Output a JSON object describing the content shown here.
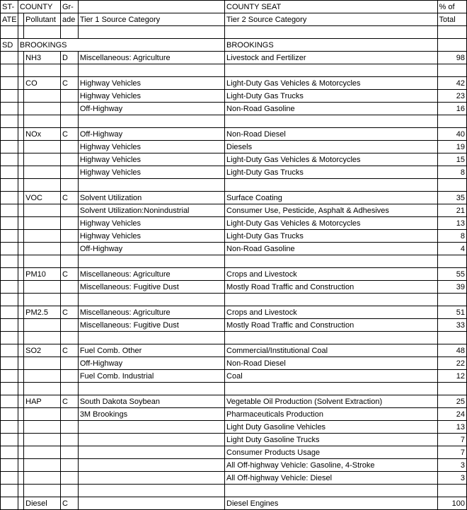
{
  "header": {
    "state": "ST-",
    "county": "COUNTY",
    "grade": "Gr-",
    "countySeat": "COUNTY SEAT",
    "pctOf": "% of",
    "ate": "ATE",
    "pollutant": "Pollutant",
    "ade": "ade",
    "tier1": "Tier 1 Source Category",
    "tier2": "Tier 2 Source Category",
    "total": "Total"
  },
  "rows": [
    {
      "state": "",
      "blank": "",
      "pollutant": "",
      "grade": "",
      "tier1": "",
      "tier2": "",
      "pct": ""
    },
    {
      "state": "SD",
      "blank": "",
      "pollutant": "BROOKINGS",
      "grade": "",
      "tier1": "",
      "tier2": "BROOKINGS",
      "pct": "",
      "pollutantSpan": true
    },
    {
      "state": "",
      "blank": "",
      "pollutant": "NH3",
      "grade": "D",
      "tier1": "Miscellaneous: Agriculture",
      "tier2": "Livestock and Fertilizer",
      "pct": "98"
    },
    {
      "state": "",
      "blank": "",
      "pollutant": "",
      "grade": "",
      "tier1": "",
      "tier2": "",
      "pct": ""
    },
    {
      "state": "",
      "blank": "",
      "pollutant": "CO",
      "grade": "C",
      "tier1": "Highway Vehicles",
      "tier2": "Light-Duty Gas Vehicles & Motorcycles",
      "pct": "42"
    },
    {
      "state": "",
      "blank": "",
      "pollutant": "",
      "grade": "",
      "tier1": "Highway Vehicles",
      "tier2": "Light-Duty Gas Trucks",
      "pct": "23"
    },
    {
      "state": "",
      "blank": "",
      "pollutant": "",
      "grade": "",
      "tier1": "Off-Highway",
      "tier2": "Non-Road Gasoline",
      "pct": "16"
    },
    {
      "state": "",
      "blank": "",
      "pollutant": "",
      "grade": "",
      "tier1": "",
      "tier2": "",
      "pct": ""
    },
    {
      "state": "",
      "blank": "",
      "pollutant": "NOx",
      "grade": "C",
      "tier1": "Off-Highway",
      "tier2": "Non-Road Diesel",
      "pct": "40"
    },
    {
      "state": "",
      "blank": "",
      "pollutant": "",
      "grade": "",
      "tier1": "Highway Vehicles",
      "tier2": "Diesels",
      "pct": "19"
    },
    {
      "state": "",
      "blank": "",
      "pollutant": "",
      "grade": "",
      "tier1": "Highway Vehicles",
      "tier2": "Light-Duty Gas Vehicles & Motorcycles",
      "pct": "15"
    },
    {
      "state": "",
      "blank": "",
      "pollutant": "",
      "grade": "",
      "tier1": "Highway Vehicles",
      "tier2": "Light-Duty Gas Trucks",
      "pct": "8"
    },
    {
      "state": "",
      "blank": "",
      "pollutant": "",
      "grade": "",
      "tier1": "",
      "tier2": "",
      "pct": ""
    },
    {
      "state": "",
      "blank": "",
      "pollutant": "VOC",
      "grade": "C",
      "tier1": "Solvent Utilization",
      "tier2": "Surface Coating",
      "pct": "35"
    },
    {
      "state": "",
      "blank": "",
      "pollutant": "",
      "grade": "",
      "tier1": "Solvent Utilization:Nonindustrial",
      "tier2": "Consumer Use, Pesticide, Asphalt & Adhesives",
      "pct": "21"
    },
    {
      "state": "",
      "blank": "",
      "pollutant": "",
      "grade": "",
      "tier1": "Highway Vehicles",
      "tier2": "Light-Duty Gas Vehicles & Motorcycles",
      "pct": "13"
    },
    {
      "state": "",
      "blank": "",
      "pollutant": "",
      "grade": "",
      "tier1": "Highway Vehicles",
      "tier2": "Light-Duty Gas Trucks",
      "pct": "8"
    },
    {
      "state": "",
      "blank": "",
      "pollutant": "",
      "grade": "",
      "tier1": "Off-Highway",
      "tier2": "Non-Road Gasoline",
      "pct": "4"
    },
    {
      "state": "",
      "blank": "",
      "pollutant": "",
      "grade": "",
      "tier1": "",
      "tier2": "",
      "pct": ""
    },
    {
      "state": "",
      "blank": "",
      "pollutant": "PM10",
      "grade": "C",
      "tier1": "Miscellaneous: Agriculture",
      "tier2": "Crops and Livestock",
      "pct": "55"
    },
    {
      "state": "",
      "blank": "",
      "pollutant": "",
      "grade": "",
      "tier1": "Miscellaneous: Fugitive Dust",
      "tier2": "Mostly Road Traffic and Construction",
      "pct": "39"
    },
    {
      "state": "",
      "blank": "",
      "pollutant": "",
      "grade": "",
      "tier1": "",
      "tier2": "",
      "pct": ""
    },
    {
      "state": "",
      "blank": "",
      "pollutant": "PM2.5",
      "grade": "C",
      "tier1": "Miscellaneous: Agriculture",
      "tier2": "Crops and Livestock",
      "pct": "51"
    },
    {
      "state": "",
      "blank": "",
      "pollutant": "",
      "grade": "",
      "tier1": "Miscellaneous: Fugitive Dust",
      "tier2": "Mostly Road Traffic and Construction",
      "pct": "33"
    },
    {
      "state": "",
      "blank": "",
      "pollutant": "",
      "grade": "",
      "tier1": "",
      "tier2": "",
      "pct": ""
    },
    {
      "state": "",
      "blank": "",
      "pollutant": "SO2",
      "grade": "C",
      "tier1": "Fuel Comb. Other",
      "tier2": "Commercial/Institutional Coal",
      "pct": "48"
    },
    {
      "state": "",
      "blank": "",
      "pollutant": "",
      "grade": "",
      "tier1": "Off-Highway",
      "tier2": "Non-Road Diesel",
      "pct": "22"
    },
    {
      "state": "",
      "blank": "",
      "pollutant": "",
      "grade": "",
      "tier1": "Fuel Comb. Industrial",
      "tier2": "Coal",
      "pct": "12"
    },
    {
      "state": "",
      "blank": "",
      "pollutant": "",
      "grade": "",
      "tier1": "",
      "tier2": "",
      "pct": ""
    },
    {
      "state": "",
      "blank": "",
      "pollutant": "HAP",
      "grade": "C",
      "tier1": "South Dakota Soybean",
      "tier2": "Vegetable Oil Production (Solvent Extraction)",
      "pct": "25"
    },
    {
      "state": "",
      "blank": "",
      "pollutant": "",
      "grade": "",
      "tier1": "3M Brookings",
      "tier2": "Pharmaceuticals Production",
      "pct": "24"
    },
    {
      "state": "",
      "blank": "",
      "pollutant": "",
      "grade": "",
      "tier1": "",
      "tier2": "Light Duty Gasoline Vehicles",
      "pct": "13"
    },
    {
      "state": "",
      "blank": "",
      "pollutant": "",
      "grade": "",
      "tier1": "",
      "tier2": "Light Duty Gasoline Trucks",
      "pct": "7"
    },
    {
      "state": "",
      "blank": "",
      "pollutant": "",
      "grade": "",
      "tier1": "",
      "tier2": "Consumer Products Usage",
      "pct": "7"
    },
    {
      "state": "",
      "blank": "",
      "pollutant": "",
      "grade": "",
      "tier1": "",
      "tier2": "All Off-highway Vehicle: Gasoline, 4-Stroke",
      "pct": "3"
    },
    {
      "state": "",
      "blank": "",
      "pollutant": "",
      "grade": "",
      "tier1": "",
      "tier2": "All Off-highway Vehicle: Diesel",
      "pct": "3"
    },
    {
      "state": "",
      "blank": "",
      "pollutant": "",
      "grade": "",
      "tier1": "",
      "tier2": "",
      "pct": ""
    },
    {
      "state": "",
      "blank": "",
      "pollutant": "Diesel",
      "grade": "C",
      "tier1": "",
      "tier2": "Diesel Engines",
      "pct": "100"
    }
  ]
}
